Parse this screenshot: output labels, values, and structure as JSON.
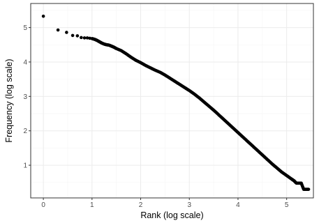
{
  "chart_data": {
    "type": "scatter",
    "title": "",
    "xlabel": "Rank (log scale)",
    "ylabel": "Frequency (log scale)",
    "xlim": [
      -0.26,
      5.55
    ],
    "ylim": [
      0.05,
      5.7
    ],
    "xticks": [
      0,
      1,
      2,
      3,
      4,
      5
    ],
    "yticks": [
      1,
      2,
      3,
      4,
      5
    ],
    "grid": true,
    "point_color": "#000000",
    "points": [
      [
        0.0,
        5.33
      ],
      [
        0.301,
        4.93
      ],
      [
        0.477,
        4.86
      ],
      [
        0.602,
        4.77
      ],
      [
        0.699,
        4.76
      ],
      [
        0.778,
        4.71
      ],
      [
        0.845,
        4.7
      ],
      [
        0.903,
        4.7
      ],
      [
        0.954,
        4.69
      ],
      [
        1.0,
        4.68
      ],
      [
        1.05,
        4.66
      ],
      [
        1.1,
        4.63
      ],
      [
        1.15,
        4.59
      ],
      [
        1.2,
        4.55
      ],
      [
        1.25,
        4.52
      ],
      [
        1.3,
        4.5
      ],
      [
        1.35,
        4.49
      ],
      [
        1.4,
        4.46
      ],
      [
        1.45,
        4.43
      ],
      [
        1.5,
        4.39
      ],
      [
        1.6,
        4.33
      ],
      [
        1.7,
        4.24
      ],
      [
        1.8,
        4.14
      ],
      [
        1.9,
        4.05
      ],
      [
        2.0,
        3.98
      ],
      [
        2.1,
        3.9
      ],
      [
        2.2,
        3.83
      ],
      [
        2.3,
        3.76
      ],
      [
        2.4,
        3.7
      ],
      [
        2.5,
        3.62
      ],
      [
        2.6,
        3.53
      ],
      [
        2.7,
        3.44
      ],
      [
        2.8,
        3.35
      ],
      [
        2.9,
        3.26
      ],
      [
        3.0,
        3.17
      ],
      [
        3.1,
        3.07
      ],
      [
        3.2,
        2.96
      ],
      [
        3.3,
        2.84
      ],
      [
        3.4,
        2.72
      ],
      [
        3.5,
        2.6
      ],
      [
        3.6,
        2.47
      ],
      [
        3.7,
        2.34
      ],
      [
        3.8,
        2.21
      ],
      [
        3.9,
        2.08
      ],
      [
        4.0,
        1.95
      ],
      [
        4.1,
        1.82
      ],
      [
        4.2,
        1.69
      ],
      [
        4.3,
        1.56
      ],
      [
        4.4,
        1.43
      ],
      [
        4.5,
        1.3
      ],
      [
        4.6,
        1.17
      ],
      [
        4.7,
        1.04
      ],
      [
        4.8,
        0.92
      ],
      [
        4.9,
        0.8
      ],
      [
        5.0,
        0.7
      ],
      [
        5.1,
        0.6
      ],
      [
        5.15,
        0.55
      ],
      [
        5.2,
        0.48
      ],
      [
        5.25,
        0.48
      ],
      [
        5.3,
        0.48
      ],
      [
        5.35,
        0.3
      ],
      [
        5.4,
        0.3
      ],
      [
        5.45,
        0.3
      ]
    ]
  }
}
